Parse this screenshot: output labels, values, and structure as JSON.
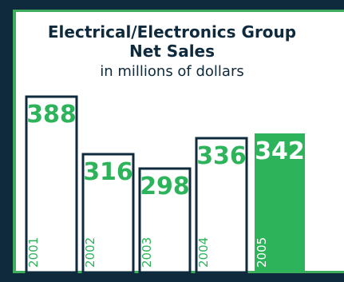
{
  "chart_data": {
    "type": "bar",
    "title": "Electrical/Electronics Group",
    "title_line2": "Net Sales",
    "subtitle": "in millions of dollars",
    "categories": [
      "2001",
      "2002",
      "2003",
      "2004",
      "2005"
    ],
    "values": [
      388,
      316,
      298,
      336,
      342
    ],
    "highlight_index": 4,
    "grid": false,
    "legend": "none"
  },
  "colors": {
    "background": "#0e2a3c",
    "accent": "#2db35a",
    "text_dark": "#0e2a3c"
  }
}
